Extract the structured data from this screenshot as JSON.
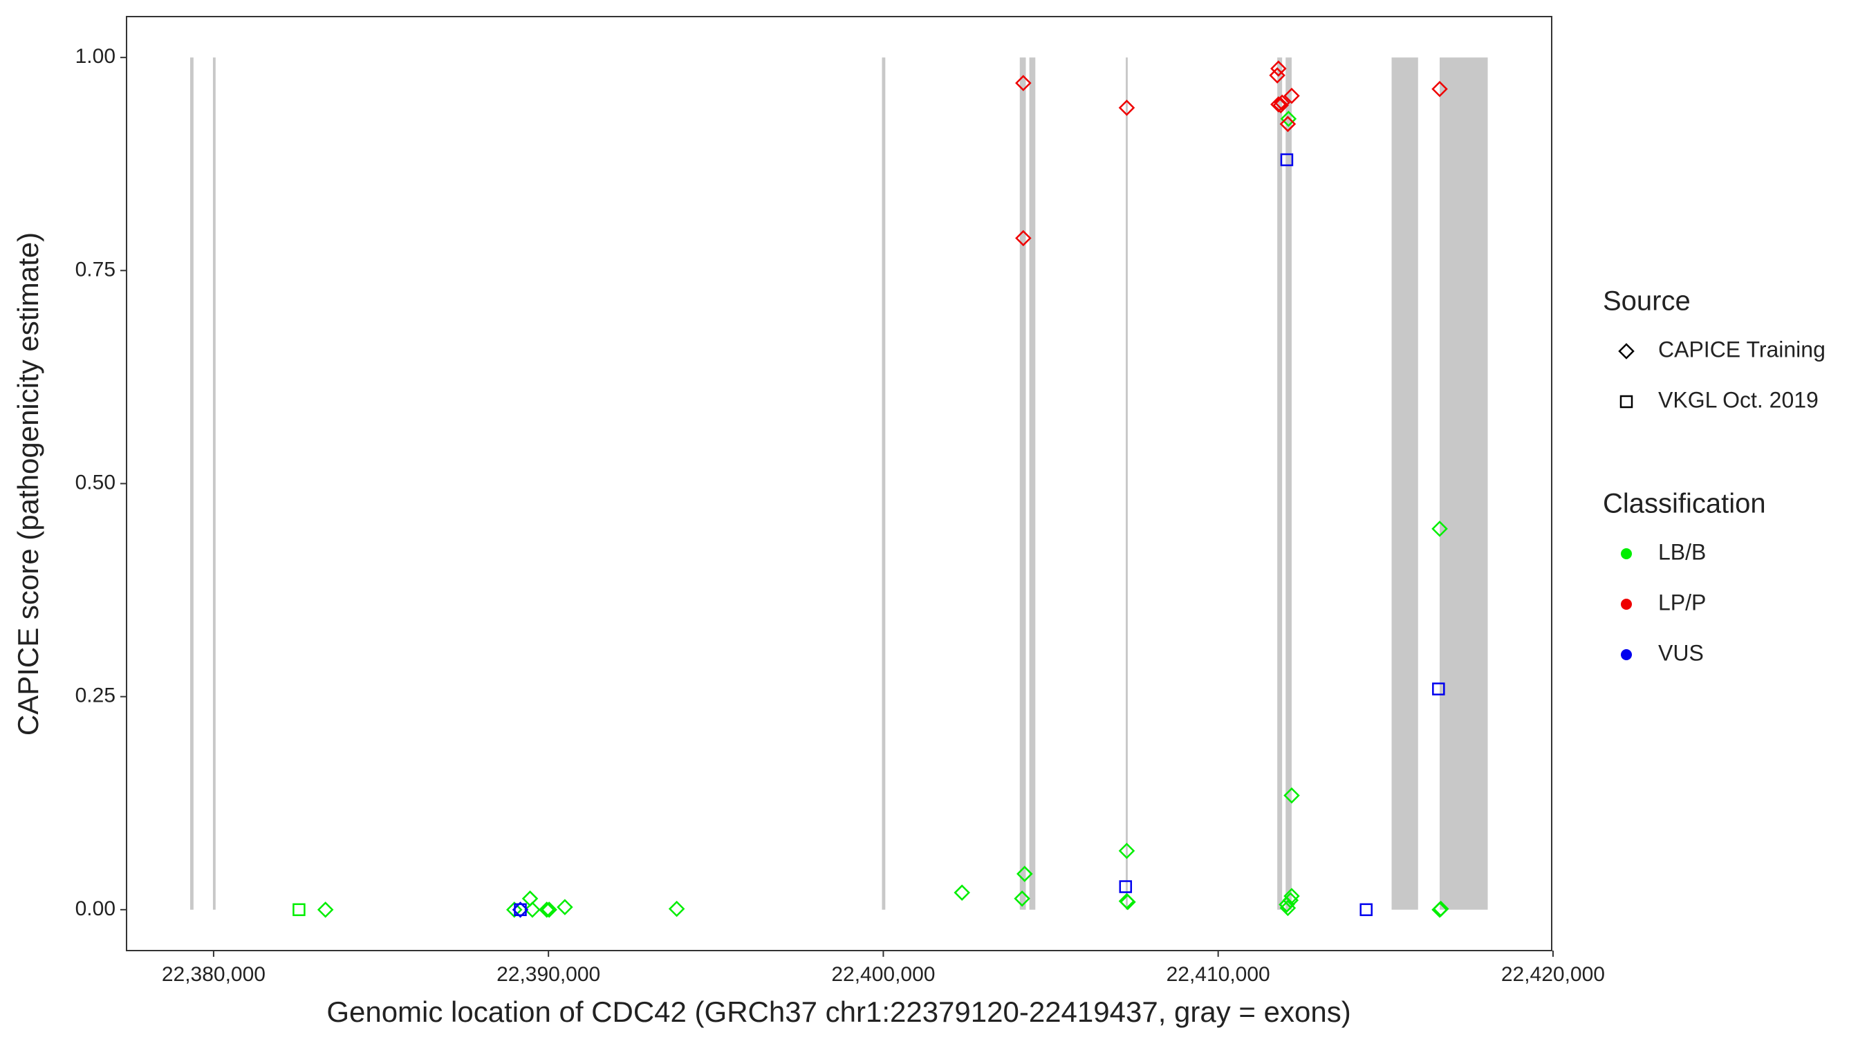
{
  "chart_data": {
    "type": "scatter",
    "x_label": "Genomic location of CDC42 (GRCh37 chr1:22379120-22419437, gray = exons)",
    "y_label": "CAPICE score (pathogenicity estimate)",
    "xlim": [
      22377400,
      22419960
    ],
    "ylim": [
      -0.048,
      1.048
    ],
    "xticks": [
      {
        "value": 22380000,
        "label": "22,380,000"
      },
      {
        "value": 22390000,
        "label": "22,390,000"
      },
      {
        "value": 22400000,
        "label": "22,400,000"
      },
      {
        "value": 22410000,
        "label": "22,410,000"
      },
      {
        "value": 22420000,
        "label": "22,420,000"
      }
    ],
    "yticks": [
      {
        "value": 0,
        "label": "0.00"
      },
      {
        "value": 0.25,
        "label": "0.25"
      },
      {
        "value": 0.5,
        "label": "0.50"
      },
      {
        "value": 0.75,
        "label": "0.75"
      },
      {
        "value": 1,
        "label": "1.00"
      }
    ],
    "exon_color": "#c8c8c8",
    "exons": [
      [
        22379300,
        22379400
      ],
      [
        22379980,
        22380060
      ],
      [
        22399960,
        22400060
      ],
      [
        22404075,
        22404255
      ],
      [
        22404360,
        22404540
      ],
      [
        22407240,
        22407300
      ],
      [
        22411765,
        22411910
      ],
      [
        22412015,
        22412195
      ],
      [
        22415180,
        22415970
      ],
      [
        22416615,
        22418050
      ]
    ],
    "series": [
      {
        "shape": "diamond",
        "color": "#00ee00",
        "x": [
          22383340,
          22389450,
          22389520,
          22389950,
          22390020,
          22390490,
          22388980,
          22393830,
          22402350,
          22404145,
          22404220,
          22407270,
          22407270,
          22407300,
          22412100,
          22412195,
          22412195,
          22412160,
          22412050,
          22412080,
          22416615,
          22416615,
          22416650
        ],
        "values": [
          0,
          0.013,
          0,
          0,
          0,
          0.003,
          0,
          0.001,
          0.02,
          0.013,
          0.042,
          0.069,
          0.01,
          0.009,
          0.928,
          0.134,
          0.016,
          0.011,
          0.006,
          0.002,
          0.447,
          0,
          0.001
        ]
      },
      {
        "shape": "square",
        "color": "#00ee00",
        "x": [
          22382550
        ],
        "values": [
          0
        ]
      },
      {
        "shape": "diamond",
        "color": "#ee0000",
        "x": [
          22404180,
          22404180,
          22407270,
          22411800,
          22411765,
          22411800,
          22411870,
          22411910,
          22412080,
          22412195,
          22416615
        ],
        "values": [
          0.97,
          0.788,
          0.941,
          0.987,
          0.979,
          0.945,
          0.944,
          0.947,
          0.922,
          0.955,
          0.963
        ]
      },
      {
        "shape": "square",
        "color": "#0000ee",
        "x": [
          22389160,
          22407235,
          22412050,
          22414420,
          22416580
        ],
        "values": [
          0,
          0.027,
          0.88,
          0,
          0.259
        ]
      },
      {
        "shape": "diamond",
        "color": "#0000ee",
        "x": [
          22389160
        ],
        "values": [
          0
        ]
      }
    ],
    "legends": [
      {
        "title": "Source",
        "entries": [
          {
            "label": "CAPICE Training",
            "shape": "diamond"
          },
          {
            "label": "VKGL Oct. 2019",
            "shape": "square"
          }
        ]
      },
      {
        "title": "Classification",
        "entries": [
          {
            "label": "LB/B",
            "color": "#00ee00"
          },
          {
            "label": "LP/P",
            "color": "#ee0000"
          },
          {
            "label": "VUS",
            "color": "#0000ee"
          }
        ]
      }
    ]
  }
}
